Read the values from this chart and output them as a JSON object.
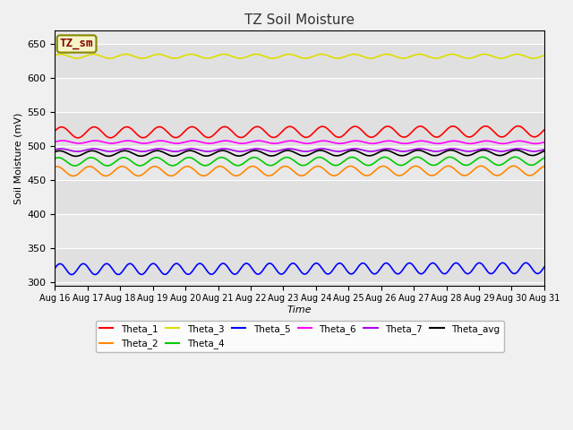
{
  "title": "TZ Soil Moisture",
  "xlabel": "Time",
  "ylabel": "Soil Moisture (mV)",
  "legend_label": "TZ_sm",
  "x_tick_labels": [
    "Aug 16",
    "Aug 17",
    "Aug 18",
    "Aug 19",
    "Aug 20",
    "Aug 21",
    "Aug 22",
    "Aug 23",
    "Aug 24",
    "Aug 25",
    "Aug 26",
    "Aug 27",
    "Aug 28",
    "Aug 29",
    "Aug 30",
    "Aug 31"
  ],
  "ylim": [
    295,
    670
  ],
  "yticks": [
    300,
    350,
    400,
    450,
    500,
    550,
    600,
    650
  ],
  "bg_color": "#e8e8e8",
  "fig_color": "#f0f0f0",
  "series": [
    {
      "name": "Theta_1",
      "color": "#ff0000",
      "base": 520,
      "amplitude": 8,
      "freq": 15,
      "phase": 0.3,
      "trend": 1.5
    },
    {
      "name": "Theta_2",
      "color": "#ff8800",
      "base": 463,
      "amplitude": 7,
      "freq": 15,
      "phase": 1.2,
      "trend": 0.8
    },
    {
      "name": "Theta_3",
      "color": "#dddd00",
      "base": 632,
      "amplitude": 3,
      "freq": 15,
      "phase": 0.5,
      "trend": 0.0
    },
    {
      "name": "Theta_4",
      "color": "#00cc00",
      "base": 477,
      "amplitude": 6,
      "freq": 15,
      "phase": 0.9,
      "trend": 1.0
    },
    {
      "name": "Theta_5",
      "color": "#0000ff",
      "base": 319,
      "amplitude": 8,
      "freq": 21,
      "phase": 0.2,
      "trend": 1.5
    },
    {
      "name": "Theta_6",
      "color": "#ff00ff",
      "base": 506,
      "amplitude": 2,
      "freq": 15,
      "phase": 0.1,
      "trend": -0.5
    },
    {
      "name": "Theta_7",
      "color": "#aa00ee",
      "base": 494,
      "amplitude": 2,
      "freq": 15,
      "phase": 0.4,
      "trend": 0.2
    },
    {
      "name": "Theta_avg",
      "color": "#000000",
      "base": 489,
      "amplitude": 4,
      "freq": 15,
      "phase": 0.7,
      "trend": 1.2
    }
  ],
  "n_points": 1000
}
